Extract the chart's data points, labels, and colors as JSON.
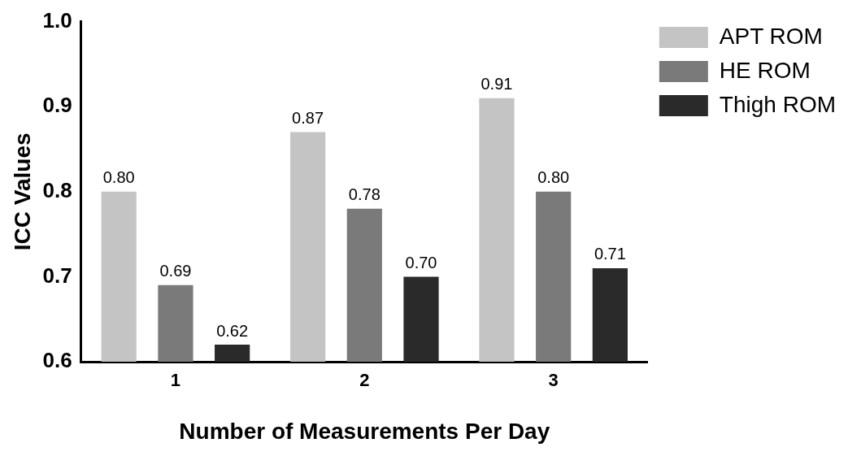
{
  "chart_data": {
    "type": "bar",
    "xlabel": "Number of Measurements Per Day",
    "ylabel": "ICC Values",
    "categories": [
      "1",
      "2",
      "3"
    ],
    "series": [
      {
        "name": "APT ROM",
        "color": "#c4c4c4",
        "values": [
          0.8,
          0.87,
          0.91
        ],
        "value_labels": [
          "0.80",
          "0.87",
          "0.91"
        ]
      },
      {
        "name": "HE ROM",
        "color": "#7a7a7a",
        "values": [
          0.69,
          0.78,
          0.8
        ],
        "value_labels": [
          "0.69",
          "0.78",
          "0.80"
        ]
      },
      {
        "name": "Thigh ROM",
        "color": "#2a2a2a",
        "values": [
          0.62,
          0.7,
          0.71
        ],
        "value_labels": [
          "0.62",
          "0.70",
          "0.71"
        ]
      }
    ],
    "ylim": [
      0.6,
      1.0
    ],
    "yticks": [
      0.6,
      0.7,
      0.8,
      0.9,
      {
        "value": 1.0,
        "label": "1.0"
      }
    ],
    "grid": false,
    "legend": "top right"
  }
}
